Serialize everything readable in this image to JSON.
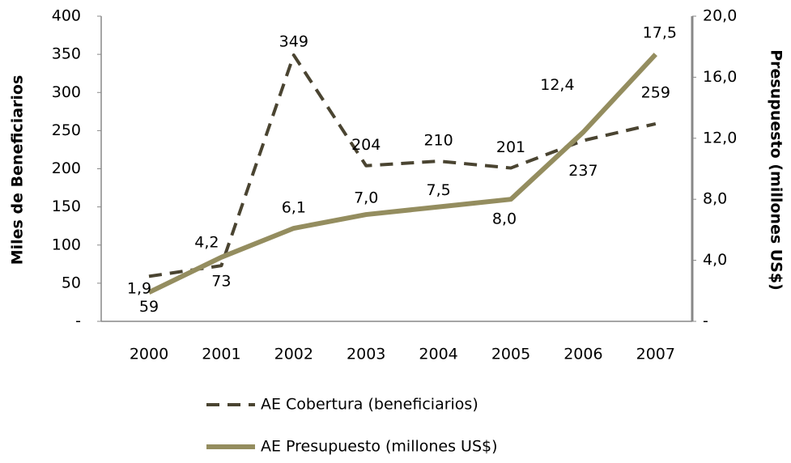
{
  "chart_data": {
    "type": "line",
    "categories": [
      "2000",
      "2001",
      "2002",
      "2003",
      "2004",
      "2005",
      "2006",
      "2007"
    ],
    "series": [
      {
        "name": "AE Cobertura (beneficiarios)",
        "color": "#4a4431",
        "dash": true,
        "values": [
          59,
          73,
          349,
          204,
          210,
          201,
          237,
          259
        ]
      },
      {
        "name": "AE Presupuesto (millones US$)",
        "color": "#948d5f",
        "axis": "y2",
        "values": [
          1.9,
          4.2,
          6.1,
          7.0,
          7.5,
          8.0,
          12.4,
          17.5
        ],
        "value_labels": [
          "1,9",
          "4,2",
          "6,1",
          "7,0",
          "7,5",
          "8,0",
          "12,4",
          "17,5"
        ]
      }
    ],
    "ylabel": "Miles de Beneficiarios",
    "y2label": "Presupuesto (millones US$)",
    "ylim": [
      0,
      400
    ],
    "yticks": [
      {
        "value": 0,
        "label": "-"
      },
      50,
      100,
      150,
      200,
      250,
      300,
      350,
      400
    ],
    "y2lim": [
      0,
      20
    ],
    "y2ticks": [
      {
        "value": 0,
        "label": "-"
      },
      {
        "value": 4,
        "label": "4,0"
      },
      {
        "value": 8,
        "label": "8,0"
      },
      {
        "value": 12,
        "label": "12,0"
      },
      {
        "value": 16,
        "label": "16,0"
      },
      {
        "value": 20,
        "label": "20,0"
      }
    ]
  }
}
